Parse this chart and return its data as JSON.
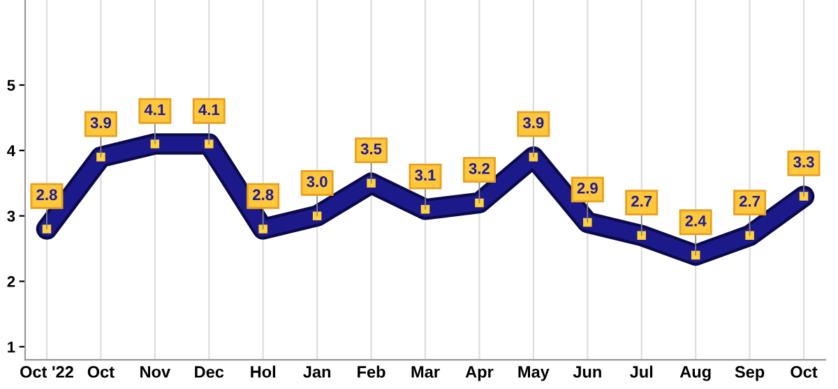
{
  "chart_data": {
    "type": "line",
    "categories": [
      "Oct '22",
      "Oct",
      "Nov",
      "Dec",
      "Hol",
      "Jan",
      "Feb",
      "Mar",
      "Apr",
      "May",
      "Jun",
      "Jul",
      "Aug",
      "Sep",
      "Oct"
    ],
    "series": [
      {
        "color": "#1c1a8a",
        "values": [
          2.8,
          3.9,
          4.1,
          4.1,
          2.8,
          3.0,
          3.5,
          3.1,
          3.2,
          3.9,
          2.9,
          2.7,
          2.4,
          2.7,
          3.3
        ],
        "value_labels": [
          "2.8",
          "3.9",
          "4.1",
          "4.1",
          "2.8",
          "3.0",
          "3.5",
          "3.1",
          "3.2",
          "3.9",
          "2.9",
          "2.7",
          "2.4",
          "2.7",
          "3.3"
        ]
      }
    ],
    "ylim": [
      0.8,
      6.3
    ],
    "yticks": [
      1,
      2,
      3,
      4,
      5
    ],
    "grid": "x",
    "marker": "square",
    "line_style": "solid"
  }
}
